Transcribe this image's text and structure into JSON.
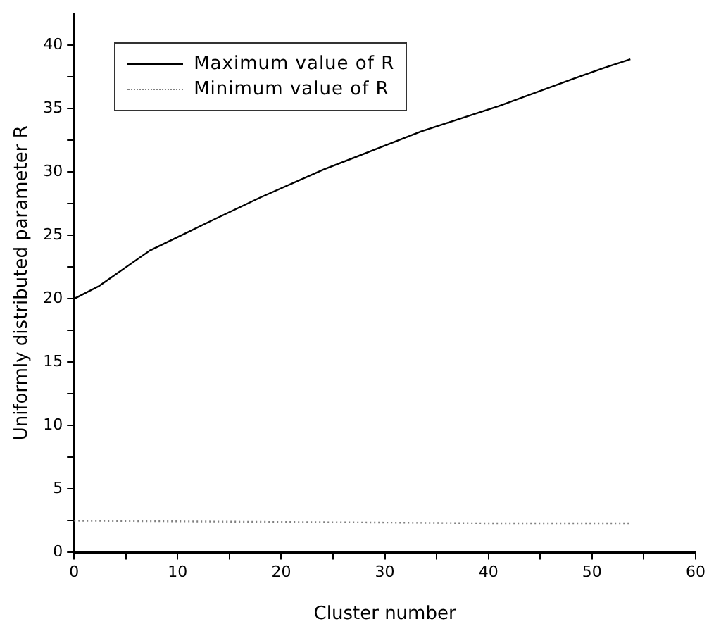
{
  "chart_data": {
    "type": "line",
    "xlabel": "Cluster number",
    "ylabel": "Uniformly distributed parameter R",
    "xlim": [
      0,
      60
    ],
    "ylim": [
      0,
      42.5
    ],
    "xticks": [
      0,
      {
        "value": 5,
        "label": null
      },
      10,
      {
        "value": 15,
        "label": null
      },
      20,
      {
        "value": 25,
        "label": null
      },
      30,
      {
        "value": 35,
        "label": null
      },
      40,
      {
        "value": 45,
        "label": null
      },
      50,
      {
        "value": 55,
        "label": null
      },
      60
    ],
    "yticks": [
      0,
      {
        "value": 2.5,
        "label": null
      },
      5,
      {
        "value": 7.5,
        "label": null
      },
      10,
      {
        "value": 12.5,
        "label": null
      },
      15,
      {
        "value": 17.5,
        "label": null
      },
      20,
      {
        "value": 22.5,
        "label": null
      },
      25,
      {
        "value": 27.5,
        "label": null
      },
      30,
      {
        "value": 32.5,
        "label": null
      },
      35,
      {
        "value": 37.5,
        "label": null
      },
      40
    ],
    "legend": "top left",
    "grid": false,
    "marker": "none",
    "series": [
      {
        "name": "Maximum value of R",
        "color": "#000000",
        "line_style": "solid",
        "x": [
          0,
          2.4,
          7.3,
          13.1,
          18,
          24.1,
          28.5,
          33.5,
          41,
          48,
          51.1,
          53.7
        ],
        "values": [
          20,
          21,
          23.8,
          26.1,
          28,
          30.2,
          31.6,
          33.2,
          35.2,
          37.3,
          38.2,
          38.9
        ]
      },
      {
        "name": "Minimum value of R",
        "color": "#808080",
        "line_style": "dotted",
        "x": [
          0,
          20,
          40,
          53.7
        ],
        "values": [
          2.5,
          2.4,
          2.3,
          2.3
        ]
      }
    ]
  }
}
